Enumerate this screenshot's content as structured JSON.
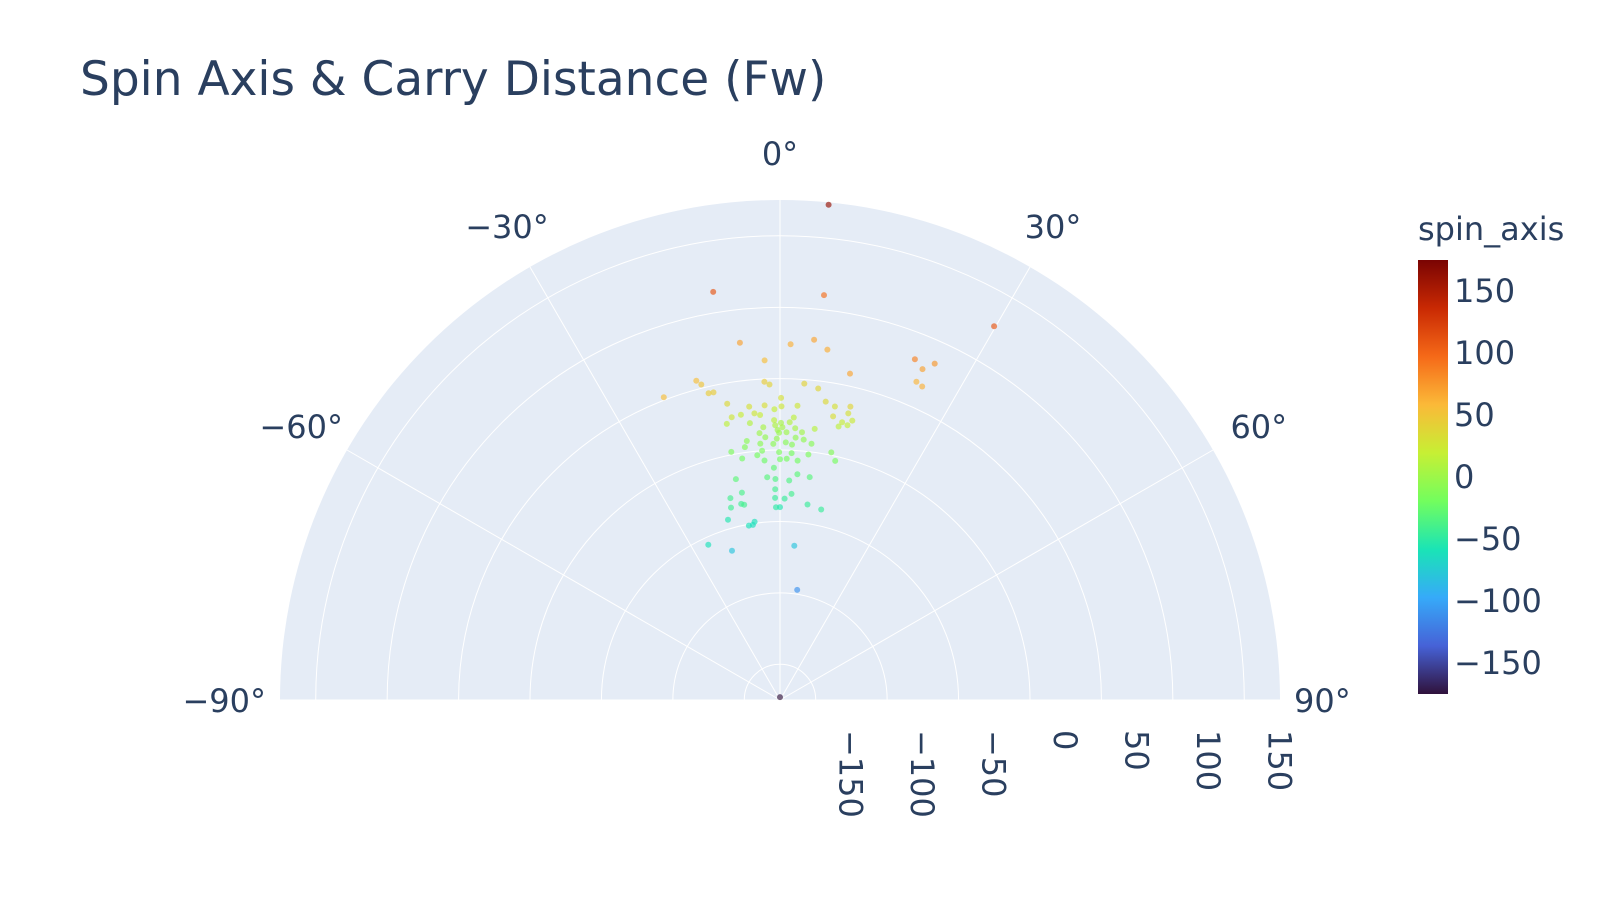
{
  "chart_data": {
    "type": "scatter",
    "title": "Spin Axis & Carry Distance (Fw)",
    "subplot": "polar",
    "angular_axis": {
      "range": [
        -90,
        90
      ],
      "tick_labels": [
        "−90°",
        "−60°",
        "−30°",
        "0°",
        "30°",
        "60°",
        "90°"
      ],
      "tick_values": [
        -90,
        -60,
        -30,
        0,
        30,
        60,
        90
      ]
    },
    "radial_axis": {
      "range": [
        -175,
        175
      ],
      "tick_labels": [
        "−150",
        "−100",
        "−50",
        "0",
        "50",
        "100",
        "150"
      ],
      "tick_values": [
        -150,
        -100,
        -50,
        0,
        50,
        100,
        150
      ]
    },
    "colorbar": {
      "title": "spin_axis",
      "range": [
        -175,
        175
      ],
      "tick_labels": [
        "150",
        "100",
        "50",
        "0",
        "−50",
        "−100",
        "−150"
      ],
      "tick_values": [
        150,
        100,
        50,
        0,
        -50,
        -100,
        -150
      ],
      "colorscale": "Turbo",
      "colors": [
        "#30123b",
        "#4662d7",
        "#36aaf9",
        "#1ae4b6",
        "#72fe5e",
        "#c7ef34",
        "#fbb938",
        "#f56918",
        "#c92903",
        "#7a0403"
      ]
    },
    "grid": true,
    "legend": "none",
    "points": [
      {
        "theta": 5.6,
        "r": 173.3,
        "c": 160
      },
      {
        "theta": -9.3,
        "r": 114.5,
        "c": 110
      },
      {
        "theta": 6.2,
        "r": 110.1,
        "c": 95
      },
      {
        "theta": 29.8,
        "r": 126.5,
        "c": 110
      },
      {
        "theta": -6.4,
        "r": 76.7,
        "c": 70
      },
      {
        "theta": 1.7,
        "r": 74.2,
        "c": 62
      },
      {
        "theta": -2.6,
        "r": 63.0,
        "c": 55
      },
      {
        "theta": 5.4,
        "r": 78.3,
        "c": 68
      },
      {
        "theta": 7.7,
        "r": 72.5,
        "c": 64
      },
      {
        "theta": 21.6,
        "r": 81.6,
        "c": 85
      },
      {
        "theta": 24.7,
        "r": 84.2,
        "c": 75
      },
      {
        "theta": 23.3,
        "r": 77.2,
        "c": 70
      },
      {
        "theta": 12.1,
        "r": 58.7,
        "c": 68
      },
      {
        "theta": 23.2,
        "r": 67.4,
        "c": 60
      },
      {
        "theta": 24.4,
        "r": 66.0,
        "c": 62
      },
      {
        "theta": -14.7,
        "r": 56.0,
        "c": 55
      },
      {
        "theta": -14.0,
        "r": 52.6,
        "c": 50
      },
      {
        "theta": -13.1,
        "r": 45.5,
        "c": 45
      },
      {
        "theta": -12.2,
        "r": 45.3,
        "c": 45
      },
      {
        "theta": -21.0,
        "r": 52.0,
        "c": 55
      },
      {
        "theta": -2.8,
        "r": 48.0,
        "c": 45
      },
      {
        "theta": -1.9,
        "r": 46.0,
        "c": 40
      },
      {
        "theta": 4.4,
        "r": 47.1,
        "c": 40
      },
      {
        "theta": 7.0,
        "r": 44.7,
        "c": 38
      },
      {
        "theta": -10.1,
        "r": 35.6,
        "c": 35
      },
      {
        "theta": -6.0,
        "r": 31.5,
        "c": 30
      },
      {
        "theta": 8.7,
        "r": 36.3,
        "c": 35
      },
      {
        "theta": 10.6,
        "r": 34.0,
        "c": 30
      },
      {
        "theta": 13.5,
        "r": 36.2,
        "c": 38
      },
      {
        "theta": 13.4,
        "r": 31.2,
        "c": 30
      },
      {
        "theta": 10.6,
        "r": 27.0,
        "c": 32
      },
      {
        "theta": -9.7,
        "r": 25.8,
        "c": 25
      },
      {
        "theta": -5.1,
        "r": 26.4,
        "c": 25
      },
      {
        "theta": 0.2,
        "r": 36.5,
        "c": 30
      },
      {
        "theta": 0.3,
        "r": 30.5,
        "c": 25
      },
      {
        "theta": -3.0,
        "r": 31.5,
        "c": 32
      },
      {
        "theta": 3.4,
        "r": 31.4,
        "c": 25
      },
      {
        "theta": -4.0,
        "r": 25.0,
        "c": 20
      },
      {
        "theta": -1.1,
        "r": 28.5,
        "c": 18
      },
      {
        "theta": 2.8,
        "r": 23.0,
        "c": 15
      },
      {
        "theta": -1.2,
        "r": 21.0,
        "c": 15
      },
      {
        "theta": 2.0,
        "r": 19.5,
        "c": 10
      },
      {
        "theta": -1.0,
        "r": 17.3,
        "c": 8
      },
      {
        "theta": 0.2,
        "r": 19.0,
        "c": 5
      },
      {
        "theta": 0.5,
        "r": 16.0,
        "c": 5
      },
      {
        "theta": -0.5,
        "r": 14.0,
        "c": 2
      },
      {
        "theta": 1.4,
        "r": 12.5,
        "c": 0
      },
      {
        "theta": -0.2,
        "r": 12.1,
        "c": -2
      },
      {
        "theta": -4.4,
        "r": 12.4,
        "c": 0
      },
      {
        "theta": 4.7,
        "r": 13.0,
        "c": 2
      },
      {
        "theta": -3.5,
        "r": 16.3,
        "c": 5
      },
      {
        "theta": 3.2,
        "r": 15.5,
        "c": 5
      },
      {
        "theta": -6.2,
        "r": 20.0,
        "c": 10
      },
      {
        "theta": 7.3,
        "r": 16.3,
        "c": 12
      },
      {
        "theta": 12.6,
        "r": 24.2,
        "c": 20
      },
      {
        "theta": 12.1,
        "r": 20.8,
        "c": 15
      },
      {
        "theta": 14.5,
        "r": 27.0,
        "c": 22
      },
      {
        "theta": 13.8,
        "r": 23.0,
        "c": 18
      },
      {
        "theta": -7.8,
        "r": 26.5,
        "c": 20
      },
      {
        "theta": -10.9,
        "r": 21.8,
        "c": 15
      },
      {
        "theta": -0.7,
        "r": 8.0,
        "c": -5
      },
      {
        "theta": -1.5,
        "r": 4.3,
        "c": -8
      },
      {
        "theta": 1.3,
        "r": 5.4,
        "c": -10
      },
      {
        "theta": 2.7,
        "r": 4.0,
        "c": -10
      },
      {
        "theta": 3.4,
        "r": 9.0,
        "c": -5
      },
      {
        "theta": -3.2,
        "r": 9.2,
        "c": -5
      },
      {
        "theta": -4.4,
        "r": 5.0,
        "c": -8
      },
      {
        "theta": 5.2,
        "r": 8.0,
        "c": -6
      },
      {
        "theta": 7.0,
        "r": 5.7,
        "c": -10
      },
      {
        "theta": -7.3,
        "r": 7.8,
        "c": -8
      },
      {
        "theta": -7.9,
        "r": 3.7,
        "c": -12
      },
      {
        "theta": -4.1,
        "r": -0.1,
        "c": -15
      },
      {
        "theta": -0.2,
        "r": -1.5,
        "c": -15
      },
      {
        "theta": 2.7,
        "r": -2.0,
        "c": -18
      },
      {
        "theta": 6.6,
        "r": -2.0,
        "c": -15
      },
      {
        "theta": 11.7,
        "r": 2.0,
        "c": -12
      },
      {
        "theta": 13.0,
        "r": -3.2,
        "c": -18
      },
      {
        "theta": -8.9,
        "r": -3.9,
        "c": -20
      },
      {
        "theta": -11.1,
        "r": 2.0,
        "c": -15
      },
      {
        "theta": 0.0,
        "r": -6.5,
        "c": -20
      },
      {
        "theta": -3.7,
        "r": -7.0,
        "c": -22
      },
      {
        "theta": 1.6,
        "r": -6.0,
        "c": -18
      },
      {
        "theta": 4.2,
        "r": -7.0,
        "c": -20
      },
      {
        "theta": -5.3,
        "r": -3.0,
        "c": -18
      },
      {
        "theta": -1.5,
        "r": -12.3,
        "c": -28
      },
      {
        "theta": -3.3,
        "r": -18.8,
        "c": -32
      },
      {
        "theta": -1.2,
        "r": -20.3,
        "c": -35
      },
      {
        "theta": 2.4,
        "r": -21.2,
        "c": -35
      },
      {
        "theta": 4.4,
        "r": -16.5,
        "c": -30
      },
      {
        "theta": 7.6,
        "r": -17.6,
        "c": -32
      },
      {
        "theta": -11.3,
        "r": -17.3,
        "c": -30
      },
      {
        "theta": -10.4,
        "r": -27.4,
        "c": -38
      },
      {
        "theta": -11.2,
        "r": -35.1,
        "c": -42
      },
      {
        "theta": -10.4,
        "r": -36.0,
        "c": -40
      },
      {
        "theta": -13.8,
        "r": -29.5,
        "c": -40
      },
      {
        "theta": -14.3,
        "r": -36.0,
        "c": -42
      },
      {
        "theta": -1.3,
        "r": -27.5,
        "c": -40
      },
      {
        "theta": -1.4,
        "r": -33.5,
        "c": -45
      },
      {
        "theta": -1.2,
        "r": -40.0,
        "c": -50
      },
      {
        "theta": 0.0,
        "r": -40.0,
        "c": -55
      },
      {
        "theta": 1.3,
        "r": -34.0,
        "c": -45
      },
      {
        "theta": 3.2,
        "r": -30.5,
        "c": -40
      },
      {
        "theta": 8.0,
        "r": -36.8,
        "c": -45
      },
      {
        "theta": 12.2,
        "r": -38.6,
        "c": -45
      },
      {
        "theta": -16.1,
        "r": -43.7,
        "c": -55
      },
      {
        "theta": -10.1,
        "r": -51.0,
        "c": -60
      },
      {
        "theta": -8.1,
        "r": -49.0,
        "c": -60
      },
      {
        "theta": -8.8,
        "r": -51.0,
        "c": -62
      },
      {
        "theta": -24.8,
        "r": -55.3,
        "c": -60
      },
      {
        "theta": -17.8,
        "r": -65.2,
        "c": -80
      },
      {
        "theta": 5.3,
        "r": -66.5,
        "c": -80
      },
      {
        "theta": 8.9,
        "r": -97.0,
        "c": -110
      },
      {
        "theta": 0.0,
        "r": -173.0,
        "c": -175
      }
    ]
  }
}
